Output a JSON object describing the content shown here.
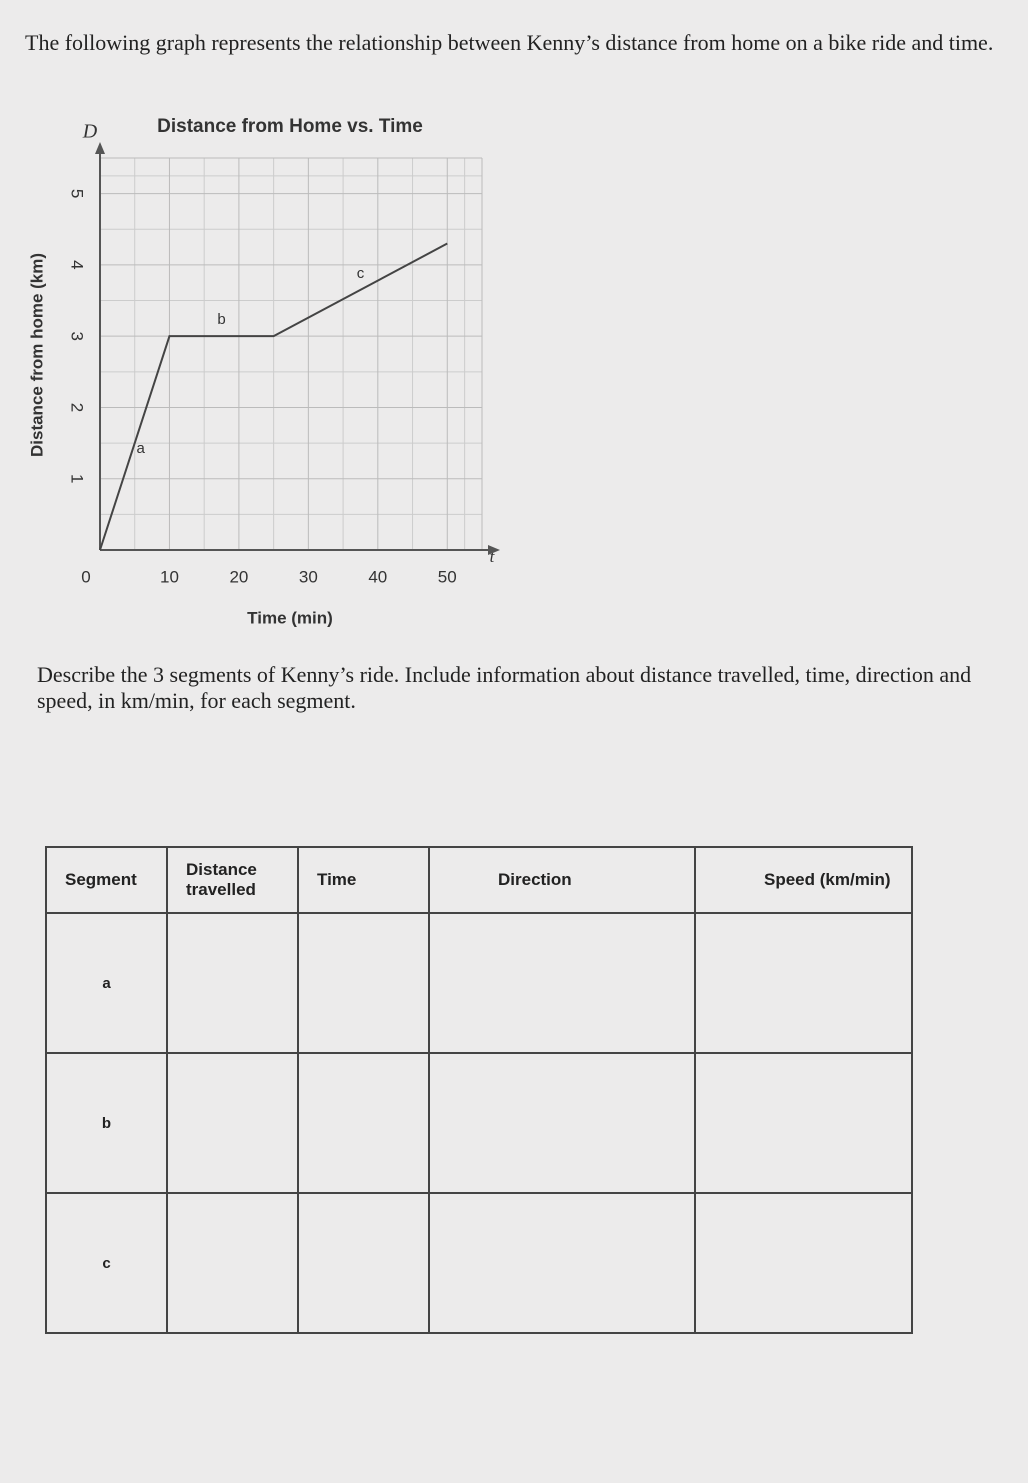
{
  "intro": "The following graph represents the relationship between Kenny’s distance from home on a bike ride and time.",
  "chart_data": {
    "type": "line",
    "title": "Distance from Home vs. Time",
    "x_label": "Time (min)",
    "y_label": "Distance from home (km)",
    "x_axis_symbol": "t",
    "y_axis_symbol": "D",
    "x": [
      0,
      10,
      25,
      50
    ],
    "values": [
      0,
      3,
      3,
      4.3
    ],
    "color": "#444444",
    "annotations": [
      "a",
      "b",
      "c"
    ],
    "xlim": [
      0,
      55
    ],
    "ylim": [
      0,
      5.5
    ],
    "xticks": [
      0,
      10,
      20,
      30,
      40,
      50
    ],
    "yticks": [
      1,
      2,
      3,
      4,
      5
    ],
    "grid": true
  },
  "question": "Describe the 3 segments of Kenny’s ride. Include information about distance travelled, time, direction and speed, in km/min, for each segment.",
  "table": {
    "headers": [
      "Segment",
      "Distance travelled",
      "Time",
      "Direction",
      "Speed (km/min)"
    ],
    "rows": [
      "a",
      "b",
      "c"
    ]
  }
}
